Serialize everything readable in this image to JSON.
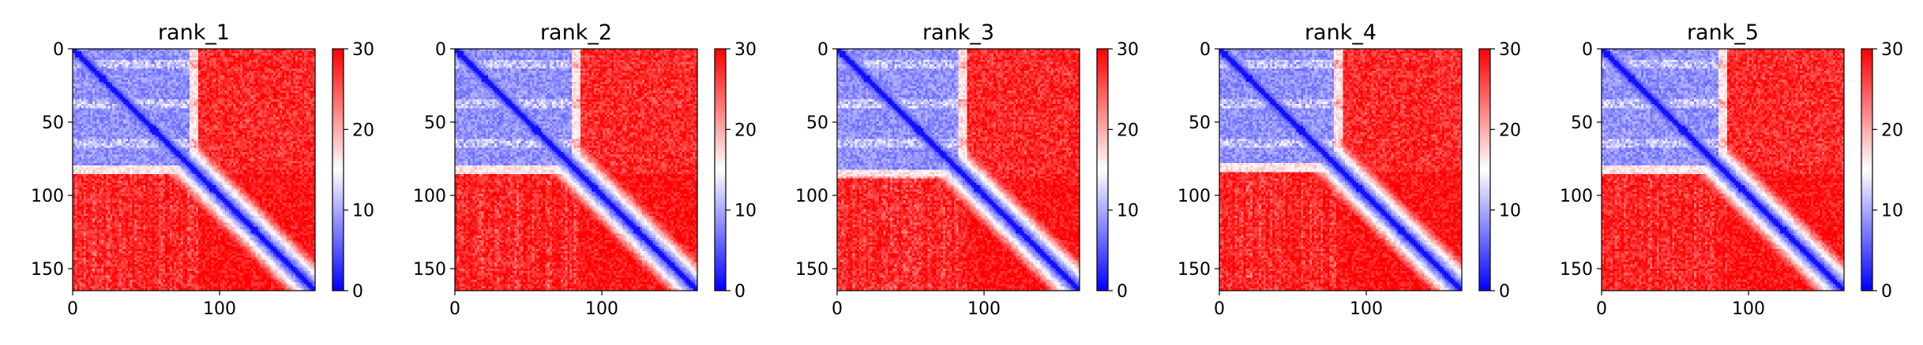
{
  "figure": {
    "colormap": {
      "low": "#0000ff",
      "mid": "#ffffff",
      "high": "#ff0000"
    }
  },
  "chart_data": [
    {
      "type": "heatmap",
      "title": "rank_1",
      "matrix_size": 165,
      "x_ticks": [
        0,
        100
      ],
      "y_ticks": [
        0,
        50,
        100,
        150
      ],
      "colorbar": {
        "range": [
          0,
          30
        ],
        "ticks": [
          0,
          10,
          20,
          30
        ]
      },
      "blue_block": [
        0,
        85
      ]
    },
    {
      "type": "heatmap",
      "title": "rank_2",
      "matrix_size": 165,
      "x_ticks": [
        0,
        100
      ],
      "y_ticks": [
        0,
        50,
        100,
        150
      ],
      "colorbar": {
        "range": [
          0,
          30
        ],
        "ticks": [
          0,
          10,
          20,
          30
        ]
      },
      "blue_block": [
        0,
        86
      ]
    },
    {
      "type": "heatmap",
      "title": "rank_3",
      "matrix_size": 165,
      "x_ticks": [
        0,
        100
      ],
      "y_ticks": [
        0,
        50,
        100,
        150
      ],
      "colorbar": {
        "range": [
          0,
          30
        ],
        "ticks": [
          0,
          10,
          20,
          30
        ]
      },
      "blue_block": [
        0,
        88
      ]
    },
    {
      "type": "heatmap",
      "title": "rank_4",
      "matrix_size": 165,
      "x_ticks": [
        0,
        100
      ],
      "y_ticks": [
        0,
        50,
        100,
        150
      ],
      "colorbar": {
        "range": [
          0,
          30
        ],
        "ticks": [
          0,
          10,
          20,
          30
        ]
      },
      "blue_block": [
        0,
        84
      ]
    },
    {
      "type": "heatmap",
      "title": "rank_5",
      "matrix_size": 165,
      "x_ticks": [
        0,
        100
      ],
      "y_ticks": [
        0,
        50,
        100,
        150
      ],
      "colorbar": {
        "range": [
          0,
          30
        ],
        "ticks": [
          0,
          10,
          20,
          30
        ]
      },
      "blue_block": [
        0,
        85
      ]
    }
  ]
}
